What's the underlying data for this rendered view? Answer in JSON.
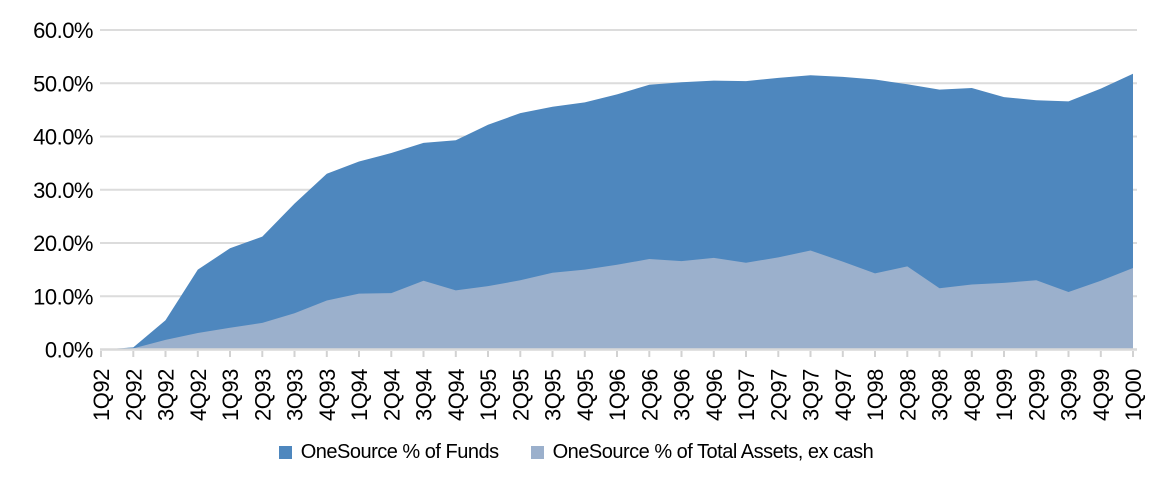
{
  "chart_data": {
    "type": "area",
    "stacked": false,
    "categories": [
      "1Q92",
      "2Q92",
      "3Q92",
      "4Q92",
      "1Q93",
      "2Q93",
      "3Q93",
      "4Q93",
      "1Q94",
      "2Q94",
      "3Q94",
      "4Q94",
      "1Q95",
      "2Q95",
      "3Q95",
      "4Q95",
      "1Q96",
      "2Q96",
      "3Q96",
      "4Q96",
      "1Q97",
      "2Q97",
      "3Q97",
      "4Q97",
      "1Q98",
      "2Q98",
      "3Q98",
      "4Q98",
      "1Q99",
      "2Q99",
      "3Q99",
      "4Q99",
      "1Q00"
    ],
    "series": [
      {
        "name": "OneSource % of Funds",
        "color": "#4E87BE",
        "values": [
          0.0,
          0.4,
          5.5,
          15.0,
          19.0,
          21.2,
          27.4,
          33.0,
          35.3,
          36.9,
          38.8,
          39.3,
          42.2,
          44.4,
          45.6,
          46.4,
          47.9,
          49.7,
          50.2,
          50.5,
          50.4,
          51.0,
          51.5,
          51.2,
          50.7,
          49.8,
          48.8,
          49.1,
          47.4,
          46.8,
          46.6,
          49.0,
          51.8
        ]
      },
      {
        "name": "OneSource % of Total Assets, ex cash",
        "color": "#9BB0CC",
        "values": [
          0.0,
          0.2,
          1.8,
          3.1,
          4.1,
          5.0,
          6.8,
          9.2,
          10.5,
          10.6,
          12.9,
          11.1,
          11.9,
          13.0,
          14.4,
          15.0,
          15.9,
          17.0,
          16.6,
          17.2,
          16.3,
          17.3,
          18.6,
          16.5,
          14.3,
          15.6,
          11.5,
          12.2,
          12.5,
          13.0,
          10.8,
          12.9,
          15.3
        ]
      }
    ],
    "title": "",
    "xlabel": "",
    "ylabel": "",
    "ylim": [
      0,
      60
    ],
    "y_tick_step": 10,
    "y_tick_labels": [
      "0.0%",
      "10.0%",
      "20.0%",
      "30.0%",
      "40.0%",
      "50.0%",
      "60.0%"
    ],
    "grid": true,
    "legend_position": "bottom",
    "colors": {
      "gridline": "#DCDCDC",
      "axis": "#D9D9D9",
      "tick": "#D2D2D2",
      "text": "#000000",
      "background": "#FFFFFF"
    }
  }
}
